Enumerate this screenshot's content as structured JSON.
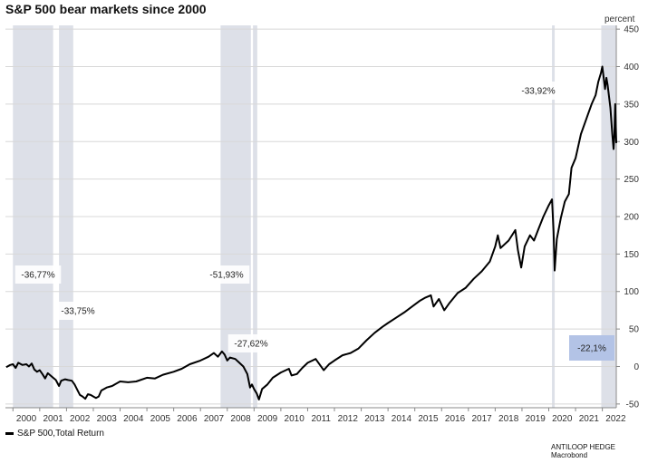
{
  "title": "S&P 500 bear markets since 2000",
  "unit_label": "percent",
  "legend_label": "S&P 500,Total Return",
  "source_lines": [
    "ANTILOOP HEDGE",
    "Macrobond"
  ],
  "colors": {
    "line": "#000000",
    "shade": "#dde0e8",
    "grid": "#d8d8d8",
    "highlight_box": "#b3c3e6"
  },
  "chart_data": {
    "type": "line",
    "ylim": [
      -55,
      455
    ],
    "xlim": [
      1999.72,
      2022.52
    ],
    "y_ticks": [
      -50,
      0,
      50,
      100,
      150,
      200,
      250,
      300,
      350,
      400,
      450
    ],
    "x_ticks": [
      "2000",
      "2001",
      "2002",
      "2003",
      "2004",
      "2005",
      "2006",
      "2007",
      "2008",
      "2009",
      "2010",
      "2011",
      "2012",
      "2013",
      "2014",
      "2015",
      "2016",
      "2017",
      "2018",
      "2019",
      "2020",
      "2021",
      "2022"
    ],
    "grid": true,
    "legend_position": "bottom-left",
    "bear_markets": [
      {
        "start": 2000.0,
        "end": 2001.5,
        "label": "-36,77%"
      },
      {
        "start": 2001.72,
        "end": 2002.25,
        "label": "-33,75%"
      },
      {
        "start": 2007.75,
        "end": 2008.88,
        "label": "-51,93%"
      },
      {
        "start": 2008.96,
        "end": 2009.12,
        "label": "-27,62%"
      },
      {
        "start": 2020.12,
        "end": 2020.21,
        "label": "-33,92%"
      },
      {
        "start": 2021.96,
        "end": 2022.5,
        "label": "-22,1%",
        "highlighted": true
      }
    ],
    "series": [
      {
        "name": "S&P 500,Total Return",
        "points": [
          [
            1999.75,
            -1
          ],
          [
            1999.9,
            2
          ],
          [
            2000.0,
            3
          ],
          [
            2000.1,
            -2
          ],
          [
            2000.2,
            5
          ],
          [
            2000.35,
            2
          ],
          [
            2000.5,
            3
          ],
          [
            2000.6,
            0
          ],
          [
            2000.7,
            4
          ],
          [
            2000.8,
            -4
          ],
          [
            2000.9,
            -7
          ],
          [
            2001.0,
            -5
          ],
          [
            2001.1,
            -10
          ],
          [
            2001.2,
            -16
          ],
          [
            2001.3,
            -9
          ],
          [
            2001.4,
            -12
          ],
          [
            2001.5,
            -15
          ],
          [
            2001.6,
            -18
          ],
          [
            2001.72,
            -26
          ],
          [
            2001.8,
            -19
          ],
          [
            2001.95,
            -17
          ],
          [
            2002.05,
            -18
          ],
          [
            2002.2,
            -19
          ],
          [
            2002.3,
            -24
          ],
          [
            2002.4,
            -31
          ],
          [
            2002.5,
            -38
          ],
          [
            2002.6,
            -40
          ],
          [
            2002.7,
            -43
          ],
          [
            2002.8,
            -37
          ],
          [
            2002.9,
            -38
          ],
          [
            2003.0,
            -40
          ],
          [
            2003.1,
            -42
          ],
          [
            2003.2,
            -40
          ],
          [
            2003.3,
            -32
          ],
          [
            2003.5,
            -28
          ],
          [
            2003.7,
            -26
          ],
          [
            2004.0,
            -20
          ],
          [
            2004.3,
            -21
          ],
          [
            2004.6,
            -20
          ],
          [
            2005.0,
            -15
          ],
          [
            2005.3,
            -16
          ],
          [
            2005.6,
            -11
          ],
          [
            2006.0,
            -7
          ],
          [
            2006.3,
            -3
          ],
          [
            2006.6,
            3
          ],
          [
            2007.0,
            8
          ],
          [
            2007.3,
            13
          ],
          [
            2007.5,
            18
          ],
          [
            2007.65,
            13
          ],
          [
            2007.8,
            20
          ],
          [
            2007.9,
            16
          ],
          [
            2008.0,
            8
          ],
          [
            2008.1,
            12
          ],
          [
            2008.3,
            10
          ],
          [
            2008.45,
            5
          ],
          [
            2008.6,
            0
          ],
          [
            2008.75,
            -10
          ],
          [
            2008.85,
            -28
          ],
          [
            2008.92,
            -24
          ],
          [
            2009.0,
            -30
          ],
          [
            2009.1,
            -36
          ],
          [
            2009.18,
            -44
          ],
          [
            2009.3,
            -30
          ],
          [
            2009.5,
            -24
          ],
          [
            2009.7,
            -15
          ],
          [
            2010.0,
            -8
          ],
          [
            2010.3,
            -3
          ],
          [
            2010.4,
            -12
          ],
          [
            2010.6,
            -10
          ],
          [
            2010.8,
            -2
          ],
          [
            2011.0,
            5
          ],
          [
            2011.3,
            10
          ],
          [
            2011.6,
            -5
          ],
          [
            2011.8,
            3
          ],
          [
            2012.0,
            8
          ],
          [
            2012.3,
            15
          ],
          [
            2012.6,
            18
          ],
          [
            2012.9,
            24
          ],
          [
            2013.2,
            35
          ],
          [
            2013.5,
            45
          ],
          [
            2013.8,
            53
          ],
          [
            2014.0,
            58
          ],
          [
            2014.3,
            65
          ],
          [
            2014.6,
            72
          ],
          [
            2014.9,
            80
          ],
          [
            2015.2,
            88
          ],
          [
            2015.4,
            92
          ],
          [
            2015.6,
            95
          ],
          [
            2015.7,
            80
          ],
          [
            2015.9,
            90
          ],
          [
            2016.1,
            75
          ],
          [
            2016.3,
            85
          ],
          [
            2016.6,
            98
          ],
          [
            2016.9,
            105
          ],
          [
            2017.2,
            117
          ],
          [
            2017.5,
            127
          ],
          [
            2017.8,
            140
          ],
          [
            2018.0,
            160
          ],
          [
            2018.1,
            175
          ],
          [
            2018.2,
            158
          ],
          [
            2018.5,
            168
          ],
          [
            2018.75,
            182
          ],
          [
            2018.85,
            155
          ],
          [
            2018.97,
            132
          ],
          [
            2019.1,
            160
          ],
          [
            2019.3,
            175
          ],
          [
            2019.45,
            168
          ],
          [
            2019.6,
            182
          ],
          [
            2019.8,
            200
          ],
          [
            2020.0,
            215
          ],
          [
            2020.12,
            223
          ],
          [
            2020.18,
            180
          ],
          [
            2020.22,
            128
          ],
          [
            2020.3,
            170
          ],
          [
            2020.45,
            198
          ],
          [
            2020.6,
            220
          ],
          [
            2020.75,
            230
          ],
          [
            2020.85,
            265
          ],
          [
            2021.0,
            278
          ],
          [
            2021.2,
            310
          ],
          [
            2021.4,
            330
          ],
          [
            2021.6,
            350
          ],
          [
            2021.75,
            362
          ],
          [
            2021.85,
            380
          ],
          [
            2021.95,
            392
          ],
          [
            2022.0,
            400
          ],
          [
            2022.05,
            385
          ],
          [
            2022.1,
            370
          ],
          [
            2022.15,
            385
          ],
          [
            2022.2,
            375
          ],
          [
            2022.3,
            345
          ],
          [
            2022.37,
            310
          ],
          [
            2022.42,
            290
          ],
          [
            2022.45,
            308
          ],
          [
            2022.48,
            350
          ],
          [
            2022.52,
            298
          ]
        ]
      }
    ]
  }
}
